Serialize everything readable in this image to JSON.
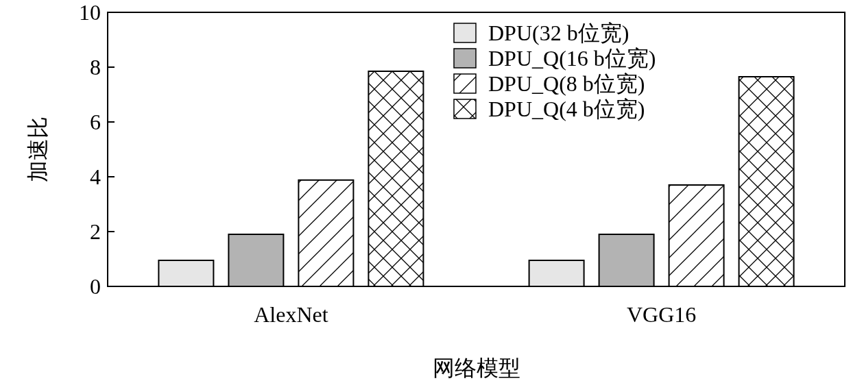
{
  "chart_data": {
    "type": "bar",
    "xlabel": "网络模型",
    "ylabel": "加速比",
    "categories": [
      "AlexNet",
      "VGG16"
    ],
    "series": [
      {
        "name": "DPU(32 b位宽)",
        "color": "#e6e6e6",
        "values": [
          0.95,
          0.95
        ]
      },
      {
        "name": "DPU_Q(16 b位宽)",
        "color": "#b3b3b3",
        "values": [
          1.9,
          1.9
        ]
      },
      {
        "name": "DPU_Q(8 b位宽)",
        "color": "#ffffff",
        "values": [
          3.88,
          3.7
        ]
      },
      {
        "name": "DPU_Q(4 b位宽)",
        "color": "#ffffff",
        "values": [
          7.85,
          7.65
        ]
      }
    ],
    "ylim": [
      0,
      10
    ],
    "yticks": [
      0,
      2,
      4,
      6,
      8,
      10
    ],
    "grid": false,
    "legend": "top right"
  }
}
